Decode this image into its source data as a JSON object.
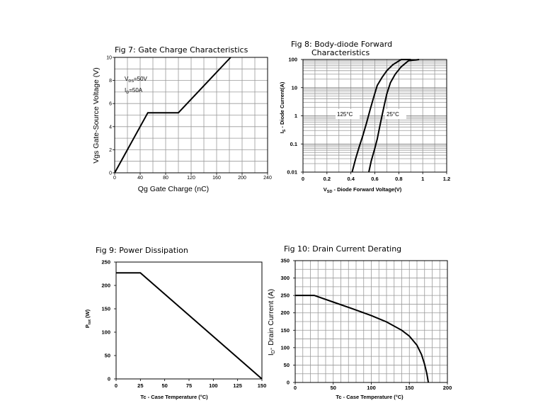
{
  "chart_data": [
    {
      "id": "fig7",
      "type": "line",
      "title": "Fig 7: Gate Charge Characteristics",
      "xlabel": "Qg Gate Charge (nC)",
      "ylabel": "Vgs Gate-Source Voltage (V)",
      "xlim": [
        0,
        240
      ],
      "ylim": [
        0,
        10
      ],
      "xticks": [
        "0",
        "40",
        "80",
        "120",
        "160",
        "200",
        "240"
      ],
      "yticks": [
        "0",
        "2",
        "4",
        "6",
        "8",
        "10"
      ],
      "grid": true,
      "annotations": [
        {
          "text": "V",
          "sub": "DS",
          "tail": "=50V"
        },
        {
          "text": "I",
          "sub": "D",
          "tail": "=50A"
        }
      ],
      "series": [
        {
          "x": [
            0,
            52,
            100,
            182
          ],
          "y": [
            0,
            5.2,
            5.2,
            10
          ]
        }
      ]
    },
    {
      "id": "fig8",
      "type": "line",
      "title": "Fig 8: Body-diode Forward",
      "title_line2": "Characteristics",
      "xlabel": "V",
      "xlabel_sub": "SD",
      "xlabel_tail": " - Diode Forward Voltage(V)",
      "ylabel": "I",
      "ylabel_sub": "S",
      "ylabel_tail": " - Diode Current(A)",
      "xlim": [
        0,
        1.2
      ],
      "ylim": [
        0.01,
        100
      ],
      "yscale": "log",
      "xticks": [
        "0",
        "0.2",
        "0.4",
        "0.6",
        "0.8",
        "1",
        "1.2"
      ],
      "yticks": [
        "0.01",
        "0.1",
        "1",
        "10",
        "100"
      ],
      "grid": true,
      "series": [
        {
          "name": "125°C",
          "x": [
            0.41,
            0.44,
            0.47,
            0.5,
            0.53,
            0.56,
            0.59,
            0.62,
            0.66,
            0.7,
            0.75,
            0.82,
            0.9
          ],
          "y": [
            0.01,
            0.03,
            0.08,
            0.2,
            0.55,
            1.6,
            4.5,
            12,
            23,
            40,
            65,
            100,
            150
          ]
        },
        {
          "name": "25°C",
          "x": [
            0.55,
            0.57,
            0.6,
            0.62,
            0.64,
            0.66,
            0.68,
            0.7,
            0.73,
            0.77,
            0.82,
            0.88,
            0.97
          ],
          "y": [
            0.01,
            0.025,
            0.07,
            0.15,
            0.4,
            1,
            2.5,
            6,
            15,
            30,
            55,
            90,
            150
          ]
        }
      ]
    },
    {
      "id": "fig9",
      "type": "line",
      "title": "Fig 9: Power Dissipation",
      "xlabel": "Tc - Case Temperature (°C)",
      "ylabel": "P",
      "ylabel_sub": "tot",
      "ylabel_tail": " (W)",
      "xlim": [
        0,
        150
      ],
      "ylim": [
        0,
        250
      ],
      "xticks": [
        "0",
        "25",
        "50",
        "75",
        "100",
        "125",
        "150"
      ],
      "yticks": [
        "0",
        "50",
        "100",
        "150",
        "200",
        "250"
      ],
      "grid": false,
      "series": [
        {
          "x": [
            0,
            25,
            150
          ],
          "y": [
            227,
            227,
            0
          ]
        }
      ]
    },
    {
      "id": "fig10",
      "type": "line",
      "title": "Fig 10: Drain Current Derating",
      "xlabel": "Tc - Case Temperature (°C)",
      "ylabel": "I",
      "ylabel_sub": "D",
      "ylabel_tail": "- Drain Current (A)",
      "xlim": [
        0,
        200
      ],
      "ylim": [
        0,
        350
      ],
      "xticks": [
        "0",
        "50",
        "100",
        "150",
        "200"
      ],
      "yticks": [
        "0",
        "50",
        "100",
        "150",
        "200",
        "250",
        "300",
        "350"
      ],
      "grid": true,
      "series": [
        {
          "x": [
            0,
            25,
            50,
            75,
            100,
            120,
            140,
            150,
            160,
            166,
            170,
            173,
            175
          ],
          "y": [
            250,
            250,
            231,
            212,
            192,
            174,
            150,
            133,
            107,
            80,
            52,
            25,
            0
          ]
        }
      ]
    }
  ]
}
